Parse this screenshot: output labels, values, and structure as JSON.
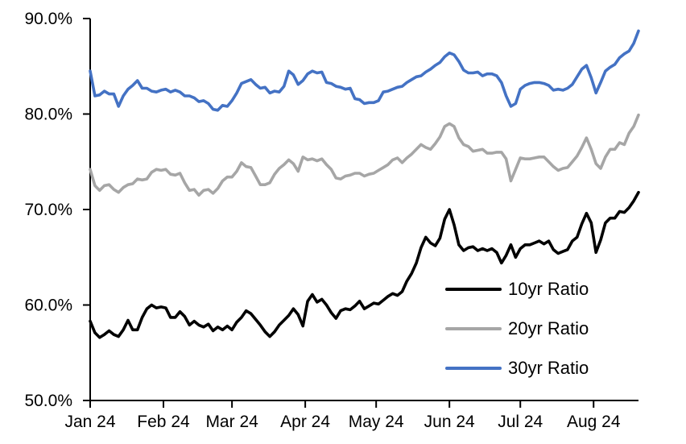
{
  "chart_data": {
    "type": "line",
    "title": "",
    "grid": false,
    "legend_position": "inside-bottom-right",
    "x_axis": {
      "categories": [
        "Jan 24",
        "Feb 24",
        "Mar 24",
        "Apr 24",
        "May 24",
        "Jun 24",
        "Jul 24",
        "Aug 24"
      ],
      "tick_day_offsets": [
        0,
        31,
        60,
        91,
        121,
        152,
        182,
        213
      ],
      "domain_days": [
        0,
        232
      ]
    },
    "y_axis": {
      "ticks": [
        50,
        60,
        70,
        80,
        90
      ],
      "tick_labels": [
        "50.0%",
        "60.0%",
        "70.0%",
        "80.0%",
        "90.0%"
      ],
      "range": [
        50,
        90
      ]
    },
    "x_step_days": 2,
    "axis_color": "#000000",
    "series": [
      {
        "name": "10yr Ratio",
        "color": "#000000",
        "values": [
          58.3,
          57.1,
          56.6,
          56.9,
          57.3,
          56.9,
          56.7,
          57.4,
          58.4,
          57.4,
          57.4,
          58.7,
          59.6,
          60.0,
          59.7,
          59.8,
          59.7,
          58.7,
          58.7,
          59.3,
          58.8,
          57.9,
          58.3,
          57.9,
          57.7,
          58.0,
          57.3,
          57.7,
          57.4,
          57.8,
          57.4,
          58.2,
          58.7,
          59.4,
          59.1,
          58.5,
          57.9,
          57.2,
          56.7,
          57.2,
          57.9,
          58.4,
          58.9,
          59.6,
          59.0,
          57.8,
          60.4,
          61.1,
          60.3,
          60.6,
          60.0,
          59.2,
          58.6,
          59.4,
          59.6,
          59.5,
          59.9,
          60.4,
          59.6,
          59.9,
          60.2,
          60.1,
          60.5,
          60.9,
          61.2,
          61.0,
          61.4,
          62.5,
          63.3,
          64.4,
          66.0,
          67.1,
          66.5,
          66.2,
          67.0,
          69.0,
          70.0,
          68.4,
          66.3,
          65.7,
          66.0,
          66.1,
          65.7,
          65.9,
          65.7,
          65.9,
          65.5,
          64.4,
          65.2,
          66.3,
          65.0,
          65.9,
          66.3,
          66.3,
          66.5,
          66.7,
          66.4,
          66.7,
          65.8,
          65.4,
          65.6,
          65.8,
          66.7,
          67.1,
          68.5,
          69.6,
          68.6,
          65.5,
          66.8,
          68.6,
          69.1,
          69.1,
          69.8,
          69.7,
          70.2,
          70.9,
          71.8
        ]
      },
      {
        "name": "20yr Ratio",
        "color": "#A6A6A6",
        "values": [
          74.2,
          72.5,
          72.0,
          72.5,
          72.6,
          72.1,
          71.8,
          72.3,
          72.6,
          72.7,
          73.2,
          73.1,
          73.2,
          73.9,
          74.2,
          74.1,
          74.2,
          73.7,
          73.6,
          73.8,
          72.8,
          72.0,
          72.1,
          71.5,
          72.0,
          72.1,
          71.7,
          72.2,
          73.0,
          73.4,
          73.4,
          74.0,
          74.9,
          74.5,
          74.4,
          73.5,
          72.6,
          72.6,
          72.8,
          73.7,
          74.3,
          74.7,
          75.2,
          74.8,
          74.0,
          75.5,
          75.2,
          75.3,
          75.1,
          75.3,
          74.7,
          74.2,
          73.3,
          73.2,
          73.5,
          73.6,
          73.8,
          73.8,
          73.5,
          73.7,
          73.8,
          74.1,
          74.4,
          74.7,
          75.2,
          75.4,
          74.9,
          75.4,
          75.8,
          76.3,
          76.8,
          76.5,
          76.3,
          76.9,
          77.6,
          78.7,
          79.0,
          78.7,
          77.5,
          76.8,
          76.6,
          76.1,
          76.2,
          76.3,
          75.9,
          75.9,
          76.0,
          76.0,
          75.3,
          73.0,
          74.2,
          75.4,
          75.3,
          75.3,
          75.4,
          75.5,
          75.5,
          75.0,
          74.5,
          74.1,
          74.3,
          74.4,
          75.0,
          75.6,
          76.5,
          77.5,
          76.3,
          74.8,
          74.3,
          75.5,
          76.3,
          76.3,
          77.0,
          76.8,
          78.0,
          78.7,
          79.9
        ]
      },
      {
        "name": "30yr Ratio",
        "color": "#4472C4",
        "values": [
          84.5,
          81.9,
          82.0,
          82.4,
          82.1,
          82.1,
          80.8,
          81.9,
          82.6,
          83.0,
          83.5,
          82.7,
          82.7,
          82.4,
          82.3,
          82.5,
          82.6,
          82.3,
          82.5,
          82.3,
          81.9,
          81.9,
          81.7,
          81.3,
          81.4,
          81.1,
          80.5,
          80.4,
          80.9,
          80.8,
          81.4,
          82.2,
          83.2,
          83.4,
          83.6,
          83.1,
          82.7,
          82.8,
          82.2,
          82.4,
          82.3,
          82.9,
          84.5,
          84.1,
          83.1,
          83.5,
          84.2,
          84.5,
          84.3,
          84.4,
          83.3,
          83.2,
          82.9,
          82.8,
          82.6,
          82.7,
          81.6,
          81.5,
          81.1,
          81.2,
          81.2,
          81.4,
          82.3,
          82.4,
          82.6,
          82.8,
          82.9,
          83.3,
          83.6,
          83.9,
          84.0,
          84.4,
          84.7,
          85.1,
          85.4,
          86.0,
          86.4,
          86.2,
          85.5,
          84.6,
          84.3,
          84.3,
          84.4,
          84.0,
          84.2,
          84.2,
          84.0,
          83.3,
          81.9,
          80.8,
          81.1,
          82.6,
          83.0,
          83.2,
          83.3,
          83.3,
          83.2,
          83.0,
          82.5,
          82.6,
          82.5,
          82.7,
          83.1,
          83.9,
          84.7,
          85.1,
          83.8,
          82.2,
          83.3,
          84.5,
          84.9,
          85.2,
          85.9,
          86.3,
          86.6,
          87.4,
          88.7
        ]
      }
    ]
  }
}
